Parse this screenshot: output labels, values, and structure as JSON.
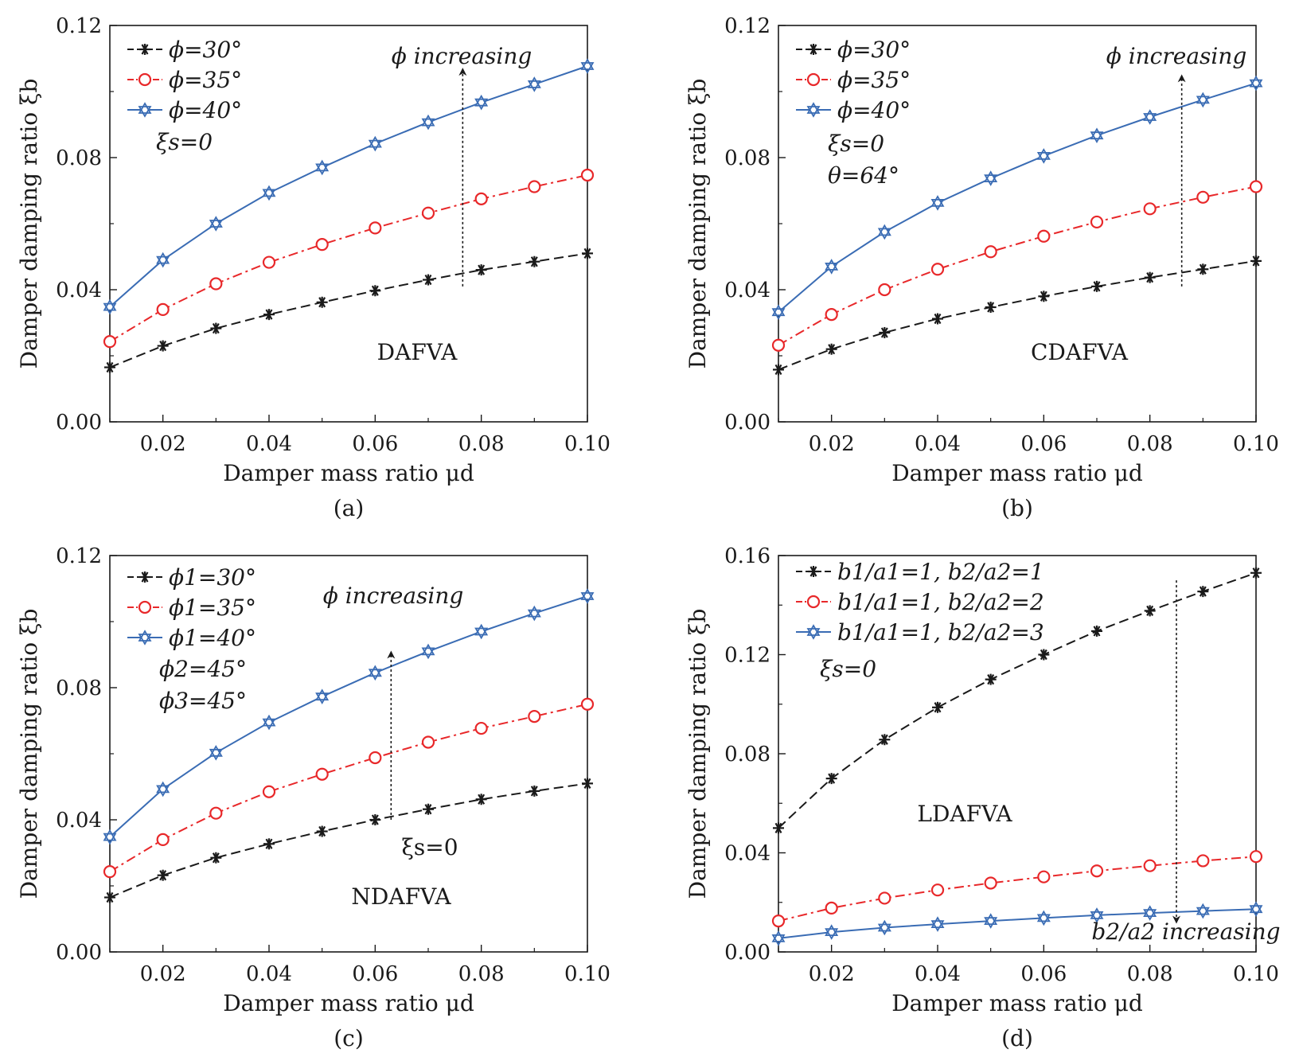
{
  "chart_data": [
    {
      "type": "line",
      "panel_label": "(a)",
      "xlabel": "Damper mass ratio μd",
      "ylabel": "Damper damping ratio ξb",
      "xlim": [
        0.01,
        0.1
      ],
      "ylim": [
        0.0,
        0.12
      ],
      "xticks": [
        "0.02",
        "0.04",
        "0.06",
        "0.08",
        "0.10"
      ],
      "yticks": [
        "0.00",
        "0.04",
        "0.08",
        "0.12"
      ],
      "x": [
        0.01,
        0.02,
        0.03,
        0.04,
        0.05,
        0.06,
        0.07,
        0.08,
        0.09,
        0.1
      ],
      "series": [
        {
          "name": "ϕ=30°",
          "color": "#1a1a1a",
          "marker": "asterisk",
          "dash": "dashed",
          "values": [
            0.0165,
            0.023,
            0.0283,
            0.0325,
            0.0362,
            0.0397,
            0.043,
            0.046,
            0.0485,
            0.051
          ]
        },
        {
          "name": "ϕ=35°",
          "color": "#e8282a",
          "marker": "circle",
          "dash": "dashdot",
          "values": [
            0.0243,
            0.034,
            0.0418,
            0.0483,
            0.0537,
            0.0587,
            0.0632,
            0.0675,
            0.0712,
            0.0747
          ]
        },
        {
          "name": "ϕ=40°",
          "color": "#3a6cb4",
          "marker": "star",
          "dash": "solid",
          "values": [
            0.0348,
            0.049,
            0.06,
            0.0693,
            0.077,
            0.0842,
            0.0907,
            0.0967,
            0.1022,
            0.1077
          ]
        }
      ],
      "legend_notes": [
        "ξs=0"
      ],
      "annotations": [
        {
          "text": "ϕ increasing",
          "arrow": "up",
          "at_x": 0.0765,
          "from_y": 0.041,
          "to_y": 0.106
        },
        {
          "text": "DAFVA",
          "at_x": 0.066,
          "at_y": 0.019
        }
      ],
      "legend_placement": "top-left",
      "grid": false
    },
    {
      "type": "line",
      "panel_label": "(b)",
      "xlabel": "Damper mass ratio μd",
      "ylabel": "Damper damping ratio ξb",
      "xlim": [
        0.01,
        0.1
      ],
      "ylim": [
        0.0,
        0.12
      ],
      "xticks": [
        "0.02",
        "0.04",
        "0.06",
        "0.08",
        "0.10"
      ],
      "yticks": [
        "0.00",
        "0.04",
        "0.08",
        "0.12"
      ],
      "x": [
        0.01,
        0.02,
        0.03,
        0.04,
        0.05,
        0.06,
        0.07,
        0.08,
        0.09,
        0.1
      ],
      "series": [
        {
          "name": "ϕ=30°",
          "color": "#1a1a1a",
          "marker": "asterisk",
          "dash": "dashed",
          "values": [
            0.0158,
            0.022,
            0.027,
            0.0312,
            0.0347,
            0.038,
            0.041,
            0.0437,
            0.0462,
            0.0487
          ]
        },
        {
          "name": "ϕ=35°",
          "color": "#e8282a",
          "marker": "circle",
          "dash": "dashdot",
          "values": [
            0.0232,
            0.0325,
            0.04,
            0.0462,
            0.0515,
            0.0562,
            0.0605,
            0.0645,
            0.068,
            0.0712
          ]
        },
        {
          "name": "ϕ=40°",
          "color": "#3a6cb4",
          "marker": "star",
          "dash": "solid",
          "values": [
            0.0332,
            0.047,
            0.0575,
            0.0663,
            0.0737,
            0.0805,
            0.0867,
            0.0923,
            0.0975,
            0.1025
          ]
        }
      ],
      "legend_notes": [
        "ξs=0",
        "θ=64°"
      ],
      "annotations": [
        {
          "text": "ϕ increasing",
          "arrow": "up",
          "at_x": 0.086,
          "from_y": 0.041,
          "to_y": 0.104
        },
        {
          "text": "CDAFVA",
          "at_x": 0.066,
          "at_y": 0.019
        }
      ],
      "legend_placement": "top-left",
      "grid": false
    },
    {
      "type": "line",
      "panel_label": "(c)",
      "xlabel": "Damper mass ratio μd",
      "ylabel": "Damper damping ratio ξb",
      "xlim": [
        0.01,
        0.1
      ],
      "ylim": [
        0.0,
        0.12
      ],
      "xticks": [
        "0.02",
        "0.04",
        "0.06",
        "0.08",
        "0.10"
      ],
      "yticks": [
        "0.00",
        "0.04",
        "0.08",
        "0.12"
      ],
      "x": [
        0.01,
        0.02,
        0.03,
        0.04,
        0.05,
        0.06,
        0.07,
        0.08,
        0.09,
        0.1
      ],
      "series": [
        {
          "name": "ϕ1=30°",
          "color": "#1a1a1a",
          "marker": "asterisk",
          "dash": "dashed",
          "values": [
            0.0165,
            0.0232,
            0.0285,
            0.0327,
            0.0365,
            0.04,
            0.0432,
            0.0462,
            0.0487,
            0.051
          ]
        },
        {
          "name": "ϕ1=35°",
          "color": "#e8282a",
          "marker": "circle",
          "dash": "dashdot",
          "values": [
            0.0243,
            0.034,
            0.042,
            0.0485,
            0.0538,
            0.0588,
            0.0635,
            0.0677,
            0.0713,
            0.075
          ]
        },
        {
          "name": "ϕ1=40°",
          "color": "#3a6cb4",
          "marker": "star",
          "dash": "solid",
          "values": [
            0.0348,
            0.0493,
            0.0603,
            0.0695,
            0.0773,
            0.0845,
            0.091,
            0.097,
            0.1025,
            0.1077
          ]
        }
      ],
      "legend_notes": [
        "ϕ2=45°",
        "ϕ3=45°"
      ],
      "annotations": [
        {
          "text": "ϕ increasing",
          "arrow": "up",
          "at_x": 0.063,
          "from_y": 0.04,
          "to_y": 0.09
        },
        {
          "text": "ξs=0",
          "at_x": 0.063,
          "at_y": 0.028
        },
        {
          "text": "NDAFVA",
          "at_x": 0.063,
          "at_y": 0.016
        }
      ],
      "legend_placement": "top-left",
      "grid": false
    },
    {
      "type": "line",
      "panel_label": "(d)",
      "xlabel": "Damper mass ratio μd",
      "ylabel": "Damper damping ratio ξb",
      "xlim": [
        0.01,
        0.1
      ],
      "ylim": [
        0.0,
        0.16
      ],
      "xticks": [
        "0.02",
        "0.04",
        "0.06",
        "0.08",
        "0.10"
      ],
      "yticks": [
        "0.00",
        "0.04",
        "0.08",
        "0.12",
        "0.16"
      ],
      "x": [
        0.01,
        0.02,
        0.03,
        0.04,
        0.05,
        0.06,
        0.07,
        0.08,
        0.09,
        0.1
      ],
      "series": [
        {
          "name": "b1/a1=1, b2/a2=1",
          "color": "#1a1a1a",
          "marker": "asterisk",
          "dash": "dashed",
          "values": [
            0.05,
            0.07,
            0.0857,
            0.0987,
            0.11,
            0.12,
            0.1295,
            0.1377,
            0.1455,
            0.153
          ]
        },
        {
          "name": "b1/a1=1, b2/a2=2",
          "color": "#e8282a",
          "marker": "circle",
          "dash": "dashdot",
          "values": [
            0.0125,
            0.0177,
            0.0217,
            0.025,
            0.0278,
            0.0303,
            0.0327,
            0.0348,
            0.0368,
            0.0385
          ]
        },
        {
          "name": "b1/a1=1, b2/a2=3",
          "color": "#3a6cb4",
          "marker": "star",
          "dash": "solid",
          "values": [
            0.0055,
            0.008,
            0.0098,
            0.0112,
            0.0125,
            0.0137,
            0.0148,
            0.0157,
            0.0165,
            0.0173
          ]
        }
      ],
      "legend_notes": [
        "ξs=0"
      ],
      "annotations": [
        {
          "text": "b2/a2 increasing",
          "arrow": "down",
          "at_x": 0.085,
          "from_y": 0.15,
          "to_y": 0.013
        },
        {
          "text": "LDAFVA",
          "at_x": 0.059,
          "at_y": 0.054
        }
      ],
      "legend_placement": "top-left",
      "grid": false
    }
  ]
}
